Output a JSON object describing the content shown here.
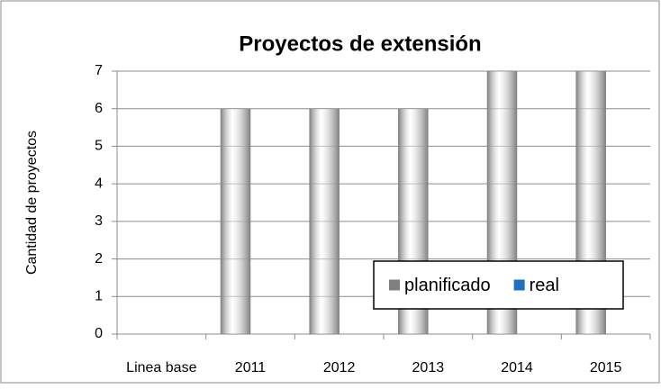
{
  "chart_data": {
    "type": "bar",
    "title": "Proyectos de extensión",
    "y_label": "Cantidad de proyectos",
    "categories": [
      "Linea base",
      "2011",
      "2012",
      "2013",
      "2014",
      "2015"
    ],
    "series": [
      {
        "name": "planificado",
        "color": "#808080",
        "values": [
          0,
          6,
          6,
          6,
          7,
          7
        ]
      },
      {
        "name": "real",
        "color": "#1f6fbf",
        "values": [
          null,
          null,
          null,
          null,
          null,
          null
        ]
      }
    ],
    "ylim": [
      0,
      7
    ],
    "yticks": [
      0,
      1,
      2,
      3,
      4,
      5,
      6,
      7
    ],
    "grid": true,
    "legend": "bottom-right"
  }
}
